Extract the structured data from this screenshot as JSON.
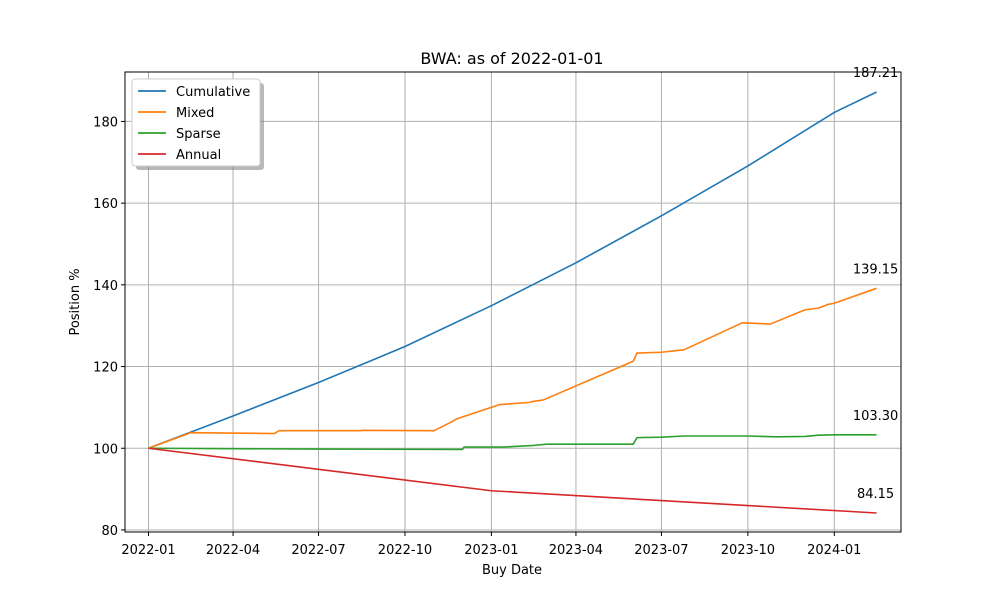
{
  "chart_data": {
    "type": "line",
    "title": "BWA: as of 2022-01-01",
    "xlabel": "Buy Date",
    "ylabel": "Position %",
    "x_ticks": [
      "2022-01",
      "2022-04",
      "2022-07",
      "2022-10",
      "2023-01",
      "2023-04",
      "2023-07",
      "2023-10",
      "2024-01"
    ],
    "y_ticks": [
      "80",
      "100",
      "120",
      "140",
      "160",
      "180"
    ],
    "xlim": [
      "2021-12-07",
      "2024-03-12"
    ],
    "ylim": [
      79.5,
      192.1
    ],
    "grid": true,
    "legend_position": "top-left",
    "series": [
      {
        "name": "Cumulative",
        "color": "#1f77b4",
        "end_label": "187.21",
        "points": [
          [
            "2022-01-01",
            100.0
          ],
          [
            "2022-04-01",
            107.9
          ],
          [
            "2022-07-01",
            116.1
          ],
          [
            "2022-10-01",
            124.9
          ],
          [
            "2023-01-01",
            134.9
          ],
          [
            "2023-04-01",
            145.4
          ],
          [
            "2023-07-01",
            156.9
          ],
          [
            "2023-10-01",
            169.1
          ],
          [
            "2024-01-01",
            182.2
          ],
          [
            "2024-02-15",
            187.21
          ]
        ]
      },
      {
        "name": "Mixed",
        "color": "#ff7f0e",
        "end_label": "139.15",
        "points": [
          [
            "2022-01-01",
            100.0
          ],
          [
            "2022-02-15",
            103.8
          ],
          [
            "2022-05-15",
            103.6
          ],
          [
            "2022-05-20",
            104.3
          ],
          [
            "2022-08-15",
            104.3
          ],
          [
            "2022-08-16",
            104.4
          ],
          [
            "2022-11-01",
            104.3
          ],
          [
            "2022-11-20",
            106.5
          ],
          [
            "2022-11-25",
            107.2
          ],
          [
            "2023-01-10",
            110.7
          ],
          [
            "2023-02-10",
            111.2
          ],
          [
            "2023-02-15",
            111.5
          ],
          [
            "2023-02-25",
            111.8
          ],
          [
            "2023-06-01",
            121.3
          ],
          [
            "2023-06-05",
            123.3
          ],
          [
            "2023-07-01",
            123.5
          ],
          [
            "2023-07-25",
            124.1
          ],
          [
            "2023-09-25",
            130.7
          ],
          [
            "2023-10-25",
            130.4
          ],
          [
            "2023-12-01",
            133.9
          ],
          [
            "2023-12-15",
            134.3
          ],
          [
            "2023-12-25",
            135.2
          ],
          [
            "2024-01-01",
            135.5
          ],
          [
            "2024-02-15",
            139.15
          ]
        ]
      },
      {
        "name": "Sparse",
        "color": "#2ca02c",
        "end_label": "103.30",
        "points": [
          [
            "2022-01-01",
            100.0
          ],
          [
            "2022-07-01",
            99.8
          ],
          [
            "2022-12-01",
            99.7
          ],
          [
            "2022-12-03",
            100.3
          ],
          [
            "2023-01-15",
            100.3
          ],
          [
            "2023-02-15",
            100.7
          ],
          [
            "2023-03-01",
            101.0
          ],
          [
            "2023-06-01",
            101.0
          ],
          [
            "2023-06-05",
            102.6
          ],
          [
            "2023-07-01",
            102.7
          ],
          [
            "2023-07-25",
            103.0
          ],
          [
            "2023-10-01",
            103.0
          ],
          [
            "2023-11-01",
            102.8
          ],
          [
            "2023-12-01",
            102.9
          ],
          [
            "2023-12-15",
            103.2
          ],
          [
            "2024-01-01",
            103.3
          ],
          [
            "2024-02-15",
            103.3
          ]
        ]
      },
      {
        "name": "Annual",
        "color": "#d62728",
        "end_label": "84.15",
        "points": [
          [
            "2022-01-01",
            100.0
          ],
          [
            "2023-01-01",
            89.6
          ],
          [
            "2024-02-15",
            84.15
          ]
        ]
      }
    ]
  }
}
